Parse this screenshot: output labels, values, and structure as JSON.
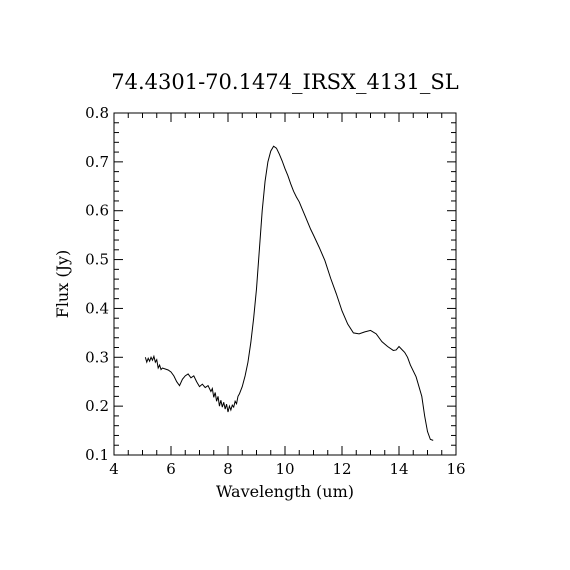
{
  "chart_data": {
    "type": "line",
    "title": "74.4301-70.1474_IRSX_4131_SL",
    "xlabel": "Wavelength (um)",
    "ylabel": "Flux (Jy)",
    "xlim": [
      4,
      16
    ],
    "ylim": [
      0.1,
      0.8
    ],
    "xticks": [
      "4",
      "6",
      "8",
      "10",
      "12",
      "14",
      "16"
    ],
    "yticks": [
      "0.1",
      "0.2",
      "0.3",
      "0.4",
      "0.5",
      "0.6",
      "0.7",
      "0.8"
    ],
    "grid": false,
    "legend": "none",
    "series": [
      {
        "color": "#000000",
        "x": [
          5.1,
          5.15,
          5.2,
          5.25,
          5.3,
          5.35,
          5.4,
          5.45,
          5.5,
          5.55,
          5.6,
          5.65,
          5.7,
          5.8,
          5.9,
          6.0,
          6.1,
          6.2,
          6.3,
          6.4,
          6.5,
          6.6,
          6.7,
          6.8,
          6.9,
          7.0,
          7.1,
          7.2,
          7.3,
          7.4,
          7.45,
          7.5,
          7.55,
          7.6,
          7.65,
          7.7,
          7.75,
          7.8,
          7.85,
          7.9,
          7.95,
          8.0,
          8.05,
          8.1,
          8.15,
          8.2,
          8.25,
          8.3,
          8.35,
          8.4,
          8.5,
          8.6,
          8.7,
          8.8,
          8.9,
          9.0,
          9.1,
          9.2,
          9.3,
          9.4,
          9.5,
          9.6,
          9.7,
          9.8,
          9.9,
          10.0,
          10.1,
          10.2,
          10.3,
          10.4,
          10.5,
          10.6,
          10.7,
          10.8,
          10.9,
          11.0,
          11.2,
          11.4,
          11.6,
          11.8,
          12.0,
          12.2,
          12.4,
          12.6,
          12.8,
          13.0,
          13.2,
          13.4,
          13.6,
          13.8,
          13.9,
          14.0,
          14.1,
          14.2,
          14.3,
          14.4,
          14.6,
          14.8,
          14.9,
          15.0,
          15.1,
          15.2
        ],
        "y": [
          0.3,
          0.29,
          0.298,
          0.292,
          0.3,
          0.294,
          0.302,
          0.29,
          0.295,
          0.278,
          0.284,
          0.275,
          0.278,
          0.276,
          0.274,
          0.27,
          0.262,
          0.25,
          0.242,
          0.255,
          0.262,
          0.266,
          0.258,
          0.262,
          0.25,
          0.24,
          0.245,
          0.238,
          0.242,
          0.23,
          0.236,
          0.218,
          0.228,
          0.21,
          0.22,
          0.2,
          0.212,
          0.198,
          0.208,
          0.194,
          0.204,
          0.188,
          0.2,
          0.192,
          0.202,
          0.198,
          0.21,
          0.205,
          0.22,
          0.225,
          0.24,
          0.262,
          0.29,
          0.33,
          0.38,
          0.44,
          0.52,
          0.6,
          0.66,
          0.7,
          0.722,
          0.732,
          0.728,
          0.716,
          0.702,
          0.686,
          0.672,
          0.655,
          0.64,
          0.628,
          0.618,
          0.604,
          0.59,
          0.576,
          0.562,
          0.55,
          0.525,
          0.498,
          0.462,
          0.43,
          0.395,
          0.368,
          0.35,
          0.348,
          0.352,
          0.355,
          0.348,
          0.332,
          0.322,
          0.314,
          0.315,
          0.322,
          0.316,
          0.31,
          0.3,
          0.284,
          0.26,
          0.22,
          0.18,
          0.148,
          0.132,
          0.13
        ]
      }
    ]
  }
}
